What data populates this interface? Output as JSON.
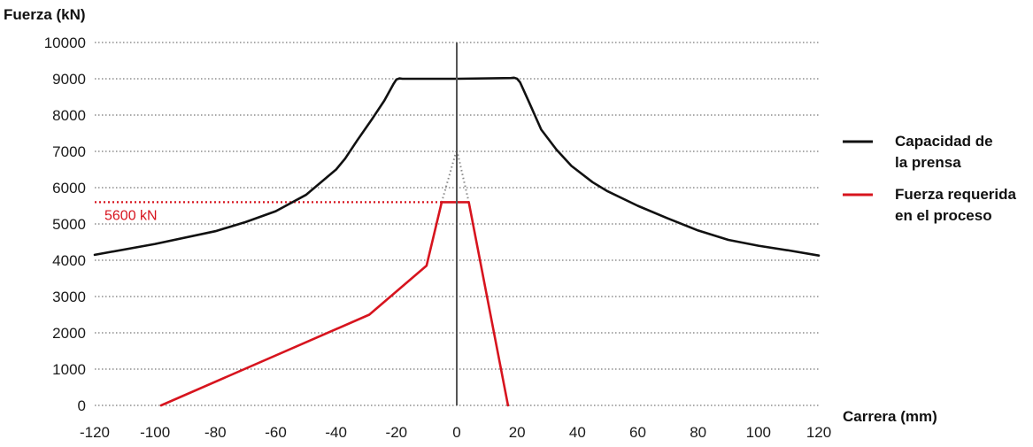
{
  "chart_data": {
    "type": "line",
    "ylabel": "Fuerza (kN)",
    "xlabel": "Carrera (mm)",
    "xlim": [
      -120,
      120
    ],
    "ylim": [
      0,
      10000
    ],
    "x_ticks": [
      -120,
      -100,
      -80,
      -60,
      -40,
      -20,
      0,
      20,
      40,
      60,
      80,
      100,
      120
    ],
    "y_ticks": [
      0,
      1000,
      2000,
      3000,
      4000,
      5000,
      6000,
      7000,
      8000,
      9000,
      10000
    ],
    "grid": "horizontal-dotted",
    "legend_position": "right",
    "colors": {
      "capacity": "#111111",
      "required": "#d7141e",
      "grid": "#555555",
      "dotted_peak": "#888888"
    },
    "series": [
      {
        "name": "Capacidad de la prensa",
        "legend_lines": [
          "Capacidad de",
          "la prensa"
        ],
        "color": "#111111",
        "x": [
          -120,
          -100,
          -80,
          -70,
          -60,
          -50,
          -40,
          -37,
          -33,
          -28,
          -24,
          -21,
          -20,
          -19,
          -18,
          0,
          18,
          19,
          20,
          21,
          24,
          28,
          33,
          38,
          45,
          50,
          60,
          70,
          80,
          90,
          100,
          110,
          120
        ],
        "y": [
          4150,
          4450,
          4800,
          5050,
          5350,
          5800,
          6500,
          6800,
          7300,
          7900,
          8400,
          8850,
          8980,
          9010,
          9000,
          9000,
          9020,
          9030,
          9000,
          8900,
          8350,
          7600,
          7050,
          6600,
          6150,
          5900,
          5500,
          5150,
          4820,
          4560,
          4400,
          4270,
          4130
        ]
      },
      {
        "name": "Fuerza requerida en el proceso",
        "legend_lines": [
          "Fuerza requerida",
          "en el proceso"
        ],
        "color": "#d7141e",
        "x": [
          -98,
          -29,
          -10,
          -5,
          4,
          17
        ],
        "y": [
          0,
          2500,
          3850,
          5600,
          5600,
          0
        ]
      }
    ],
    "peak_dotted": {
      "x": [
        -5,
        0,
        4
      ],
      "y": [
        5600,
        7050,
        5600
      ]
    },
    "annotations": [
      {
        "text": "5600 kN",
        "y": 5600,
        "color": "#d7141e"
      }
    ]
  }
}
